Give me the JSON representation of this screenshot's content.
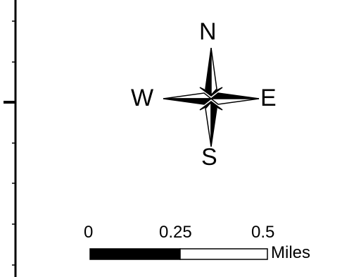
{
  "north_arrow": {
    "labels": {
      "north": "N",
      "south": "S",
      "west": "W",
      "east": "E"
    },
    "icon": "compass-rose-icon"
  },
  "scale_bar": {
    "tick_labels": [
      "0",
      "0.25",
      "0.5"
    ],
    "units": "Miles",
    "segments": [
      {
        "from": 0,
        "to": 0.25,
        "fill": "#000000"
      },
      {
        "from": 0.25,
        "to": 0.5,
        "fill": "#ffffff"
      }
    ]
  },
  "colors": {
    "ink": "#000000",
    "paper": "#ffffff"
  }
}
